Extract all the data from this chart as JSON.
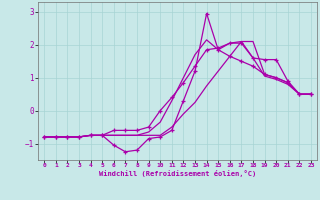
{
  "xlabel": "Windchill (Refroidissement éolien,°C)",
  "xlim": [
    -0.5,
    23.5
  ],
  "ylim": [
    -1.5,
    3.3
  ],
  "xticks": [
    0,
    1,
    2,
    3,
    4,
    5,
    6,
    7,
    8,
    9,
    10,
    11,
    12,
    13,
    14,
    15,
    16,
    17,
    18,
    19,
    20,
    21,
    22,
    23
  ],
  "yticks": [
    -1,
    0,
    1,
    2,
    3
  ],
  "background_color": "#c8e8e8",
  "grid_color": "#a8d4d4",
  "line_color": "#aa00aa",
  "lines": [
    {
      "x": [
        0,
        1,
        2,
        3,
        4,
        5,
        6,
        7,
        8,
        9,
        10,
        11,
        12,
        13,
        14,
        15,
        16,
        17,
        18,
        19,
        20,
        21,
        22,
        23
      ],
      "y": [
        -0.8,
        -0.8,
        -0.8,
        -0.8,
        -0.75,
        -0.75,
        -1.05,
        -1.25,
        -1.2,
        -0.85,
        -0.8,
        -0.6,
        0.3,
        1.2,
        2.95,
        1.85,
        1.65,
        1.5,
        1.35,
        1.1,
        1.0,
        0.85,
        0.5,
        0.5
      ],
      "marker": true
    },
    {
      "x": [
        0,
        1,
        2,
        3,
        4,
        5,
        6,
        7,
        8,
        9,
        10,
        11,
        12,
        13,
        14,
        15,
        16,
        17,
        18,
        19,
        20,
        21,
        22,
        23
      ],
      "y": [
        -0.8,
        -0.8,
        -0.8,
        -0.8,
        -0.75,
        -0.75,
        -0.75,
        -0.75,
        -0.75,
        -0.65,
        -0.35,
        0.3,
        1.0,
        1.7,
        2.15,
        1.85,
        2.05,
        2.1,
        1.6,
        1.05,
        0.95,
        0.8,
        0.5,
        0.5
      ],
      "marker": false
    },
    {
      "x": [
        0,
        1,
        2,
        3,
        4,
        5,
        6,
        7,
        8,
        9,
        10,
        11,
        12,
        13,
        14,
        15,
        16,
        17,
        18,
        19,
        20,
        21,
        22,
        23
      ],
      "y": [
        -0.8,
        -0.8,
        -0.8,
        -0.8,
        -0.75,
        -0.75,
        -0.6,
        -0.6,
        -0.6,
        -0.5,
        0.0,
        0.4,
        0.85,
        1.35,
        1.85,
        1.9,
        2.05,
        2.05,
        1.6,
        1.55,
        1.55,
        0.9,
        0.5,
        0.5
      ],
      "marker": true
    },
    {
      "x": [
        0,
        1,
        2,
        3,
        4,
        5,
        6,
        7,
        8,
        9,
        10,
        11,
        12,
        13,
        14,
        15,
        16,
        17,
        18,
        19,
        20,
        21,
        22,
        23
      ],
      "y": [
        -0.8,
        -0.8,
        -0.8,
        -0.8,
        -0.75,
        -0.75,
        -0.75,
        -0.75,
        -0.75,
        -0.75,
        -0.75,
        -0.5,
        -0.1,
        0.25,
        0.75,
        1.2,
        1.65,
        2.1,
        2.1,
        1.1,
        1.0,
        0.85,
        0.5,
        0.5
      ],
      "marker": false
    }
  ]
}
